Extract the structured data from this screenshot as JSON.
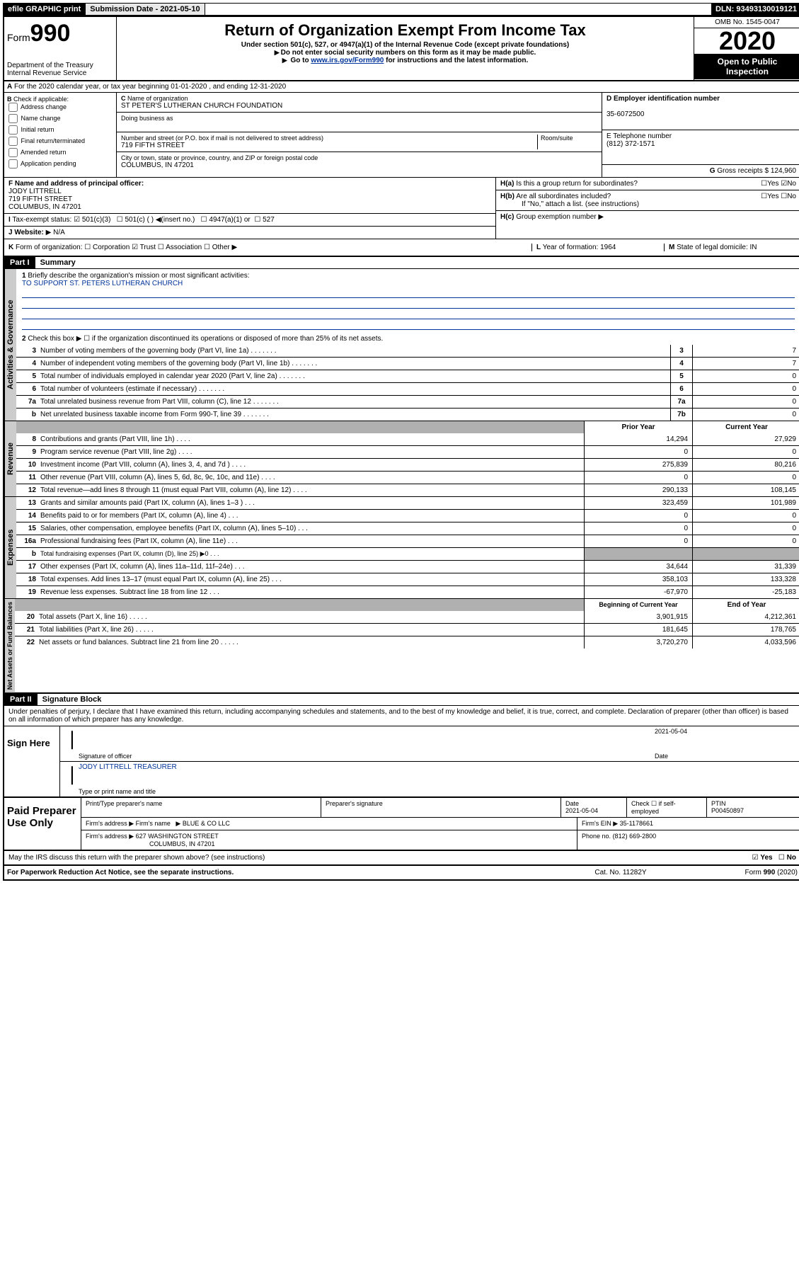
{
  "topbar": {
    "efile": "efile GRAPHIC print",
    "submission": "Submission Date - 2021-05-10",
    "dln": "DLN: 93493130019121"
  },
  "header": {
    "form_label": "Form",
    "form_num": "990",
    "title": "Return of Organization Exempt From Income Tax",
    "sub1": "Under section 501(c), 527, or 4947(a)(1) of the Internal Revenue Code (except private foundations)",
    "sub2": "Do not enter social security numbers on this form as it may be made public.",
    "sub3_pre": "Go to ",
    "sub3_link": "www.irs.gov/Form990",
    "sub3_post": " for instructions and the latest information.",
    "dept": "Department of the Treasury\nInternal Revenue Service",
    "omb": "OMB No. 1545-0047",
    "year": "2020",
    "open": "Open to Public Inspection"
  },
  "row_a": "For the 2020 calendar year, or tax year beginning 01-01-2020   , and ending 12-31-2020",
  "box_b": {
    "label": "Check if applicable:",
    "items": [
      "Address change",
      "Name change",
      "Initial return",
      "Final return/terminated",
      "Amended return",
      "Application pending"
    ]
  },
  "box_c": {
    "name_label": "Name of organization",
    "name": "ST PETER'S LUTHERAN CHURCH FOUNDATION",
    "dba_label": "Doing business as",
    "addr_label": "Number and street (or P.O. box if mail is not delivered to street address)",
    "room_label": "Room/suite",
    "addr": "719 FIFTH STREET",
    "city_label": "City or town, state or province, country, and ZIP or foreign postal code",
    "city": "COLUMBUS, IN  47201"
  },
  "box_d": {
    "label": "D Employer identification number",
    "val": "35-6072500"
  },
  "box_e": {
    "label": "E Telephone number",
    "val": "(812) 372-1571"
  },
  "box_g": {
    "label": "G",
    "text": "Gross receipts $",
    "val": "124,960"
  },
  "box_f": {
    "label": "F  Name and address of principal officer:",
    "name": "JODY LITTRELL",
    "addr": "719 FIFTH STREET",
    "city": "COLUMBUS, IN  47201"
  },
  "box_h": {
    "a": "Is this a group return for subordinates?",
    "b": "Are all subordinates included?",
    "b_note": "If \"No,\" attach a list. (see instructions)",
    "c": "Group exemption number"
  },
  "tax_exempt": {
    "label": "Tax-exempt status:",
    "opt1": "501(c)(3)",
    "opt2": "501(c) (  )",
    "opt2_insert": "(insert no.)",
    "opt3": "4947(a)(1) or",
    "opt4": "527"
  },
  "website": {
    "label": "Website:",
    "val": "N/A"
  },
  "row_k": {
    "label": "Form of organization:",
    "opts": [
      "Corporation",
      "Trust",
      "Association",
      "Other"
    ],
    "l_label": "Year of formation:",
    "l_val": "1964",
    "m_label": "State of legal domicile:",
    "m_val": "IN"
  },
  "part1": {
    "hdr": "Part I",
    "title": "Summary"
  },
  "mission": {
    "q": "Briefly describe the organization's mission or most significant activities:",
    "a": "TO SUPPORT ST. PETERS LUTHERAN CHURCH"
  },
  "governance": {
    "tab": "Activities & Governance",
    "line2": "Check this box ▶ ☐  if the organization discontinued its operations or disposed of more than 25% of its net assets.",
    "rows": [
      {
        "n": "3",
        "label": "Number of voting members of the governing body (Part VI, line 1a)",
        "box": "3",
        "val": "7"
      },
      {
        "n": "4",
        "label": "Number of independent voting members of the governing body (Part VI, line 1b)",
        "box": "4",
        "val": "7"
      },
      {
        "n": "5",
        "label": "Total number of individuals employed in calendar year 2020 (Part V, line 2a)",
        "box": "5",
        "val": "0"
      },
      {
        "n": "6",
        "label": "Total number of volunteers (estimate if necessary)",
        "box": "6",
        "val": "0"
      },
      {
        "n": "7a",
        "label": "Total unrelated business revenue from Part VIII, column (C), line 12",
        "box": "7a",
        "val": "0"
      },
      {
        "n": "b",
        "label": "Net unrelated business taxable income from Form 990-T, line 39",
        "box": "7b",
        "val": "0"
      }
    ]
  },
  "revenue": {
    "tab": "Revenue",
    "hdr_prior": "Prior Year",
    "hdr_curr": "Current Year",
    "rows": [
      {
        "n": "8",
        "label": "Contributions and grants (Part VIII, line 1h)",
        "prior": "14,294",
        "curr": "27,929"
      },
      {
        "n": "9",
        "label": "Program service revenue (Part VIII, line 2g)",
        "prior": "0",
        "curr": "0"
      },
      {
        "n": "10",
        "label": "Investment income (Part VIII, column (A), lines 3, 4, and 7d )",
        "prior": "275,839",
        "curr": "80,216"
      },
      {
        "n": "11",
        "label": "Other revenue (Part VIII, column (A), lines 5, 6d, 8c, 9c, 10c, and 11e)",
        "prior": "0",
        "curr": "0"
      },
      {
        "n": "12",
        "label": "Total revenue—add lines 8 through 11 (must equal Part VIII, column (A), line 12)",
        "prior": "290,133",
        "curr": "108,145"
      }
    ]
  },
  "expenses": {
    "tab": "Expenses",
    "rows": [
      {
        "n": "13",
        "label": "Grants and similar amounts paid (Part IX, column (A), lines 1–3 )",
        "prior": "323,459",
        "curr": "101,989"
      },
      {
        "n": "14",
        "label": "Benefits paid to or for members (Part IX, column (A), line 4)",
        "prior": "0",
        "curr": "0"
      },
      {
        "n": "15",
        "label": "Salaries, other compensation, employee benefits (Part IX, column (A), lines 5–10)",
        "prior": "0",
        "curr": "0"
      },
      {
        "n": "16a",
        "label": "Professional fundraising fees (Part IX, column (A), line 11e)",
        "prior": "0",
        "curr": "0"
      },
      {
        "n": "b",
        "label": "Total fundraising expenses (Part IX, column (D), line 25) ▶0",
        "prior": "",
        "curr": "",
        "shaded": true
      },
      {
        "n": "17",
        "label": "Other expenses (Part IX, column (A), lines 11a–11d, 11f–24e)",
        "prior": "34,644",
        "curr": "31,339"
      },
      {
        "n": "18",
        "label": "Total expenses. Add lines 13–17 (must equal Part IX, column (A), line 25)",
        "prior": "358,103",
        "curr": "133,328"
      },
      {
        "n": "19",
        "label": "Revenue less expenses. Subtract line 18 from line 12",
        "prior": "-67,970",
        "curr": "-25,183"
      }
    ]
  },
  "netassets": {
    "tab": "Net Assets or Fund Balances",
    "hdr_begin": "Beginning of Current Year",
    "hdr_end": "End of Year",
    "rows": [
      {
        "n": "20",
        "label": "Total assets (Part X, line 16)",
        "prior": "3,901,915",
        "curr": "4,212,361"
      },
      {
        "n": "21",
        "label": "Total liabilities (Part X, line 26)",
        "prior": "181,645",
        "curr": "178,765"
      },
      {
        "n": "22",
        "label": "Net assets or fund balances. Subtract line 21 from line 20",
        "prior": "3,720,270",
        "curr": "4,033,596"
      }
    ]
  },
  "part2": {
    "hdr": "Part II",
    "title": "Signature Block"
  },
  "perjury": "Under penalties of perjury, I declare that I have examined this return, including accompanying schedules and statements, and to the best of my knowledge and belief, it is true, correct, and complete. Declaration of preparer (other than officer) is based on all information of which preparer has any knowledge.",
  "sign": {
    "here": "Sign Here",
    "date": "2021-05-04",
    "sig_label": "Signature of officer",
    "date_label": "Date",
    "name": "JODY LITTRELL TREASURER",
    "name_label": "Type or print name and title"
  },
  "paid": {
    "label": "Paid Preparer Use Only",
    "h1": "Print/Type preparer's name",
    "h2": "Preparer's signature",
    "h3": "Date",
    "date": "2021-05-04",
    "h4": "Check ☐ if self-employed",
    "h5": "PTIN",
    "ptin": "P00450897",
    "firm_label": "Firm's name",
    "firm": "BLUE & CO LLC",
    "ein_label": "Firm's EIN",
    "ein": "35-1178661",
    "addr_label": "Firm's address",
    "addr": "627 WASHINGTON STREET",
    "city": "COLUMBUS, IN  47201",
    "phone_label": "Phone no.",
    "phone": "(812) 669-2800"
  },
  "discuss": "May the IRS discuss this return with the preparer shown above? (see instructions)",
  "footer": {
    "pra": "For Paperwork Reduction Act Notice, see the separate instructions.",
    "cat": "Cat. No. 11282Y",
    "form": "Form 990 (2020)"
  },
  "yesno": {
    "yes": "Yes",
    "no": "No"
  }
}
